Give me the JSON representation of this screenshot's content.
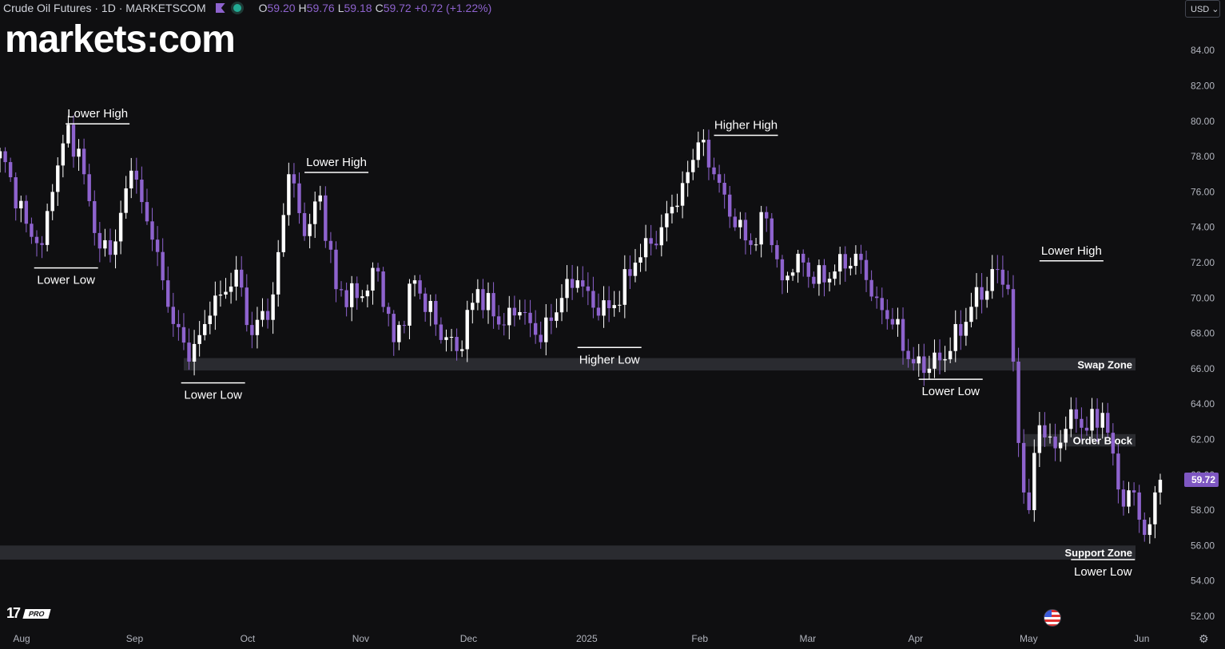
{
  "header": {
    "symbol": "Crude Oil Futures · 1D · MARKETSCOM",
    "o_label": "O",
    "o_value": "59.20",
    "h_label": "H",
    "h_value": "59.76",
    "l_label": "L",
    "l_value": "59.18",
    "c_label": "C",
    "c_value": "59.72",
    "change": "+0.72 (+1.22%)"
  },
  "logo": {
    "left": "markets",
    "colon": ":",
    "right": "com"
  },
  "currency": "USD",
  "watermark": {
    "mark": "17",
    "badge": "PRO"
  },
  "colors": {
    "background": "#0f0f11",
    "bull": "#ffffff",
    "bear": "#8e63ce",
    "zone": "#2a2b30",
    "text": "#d1d4dc",
    "price_tag": "#7e57c2"
  },
  "chart_data": {
    "type": "candlestick",
    "ylim": [
      51.5,
      85.5
    ],
    "y_ticks": [
      52,
      54,
      56,
      58,
      60,
      62,
      64,
      66,
      68,
      70,
      72,
      74,
      76,
      78,
      80,
      82,
      84
    ],
    "x_ticks": [
      "Aug",
      "Sep",
      "Oct",
      "Nov",
      "Dec",
      "2025",
      "Feb",
      "Mar",
      "Apr",
      "May",
      "Jun"
    ],
    "last_price": "59.72",
    "anchors": [
      {
        "d": 0,
        "p": 78.3
      },
      {
        "d": 5,
        "p": 74.2
      },
      {
        "d": 8,
        "p": 73.0
      },
      {
        "d": 10,
        "p": 76.0
      },
      {
        "d": 13,
        "p": 79.8
      },
      {
        "d": 16,
        "p": 77.0
      },
      {
        "d": 19,
        "p": 72.8
      },
      {
        "d": 22,
        "p": 73.2
      },
      {
        "d": 25,
        "p": 77.2
      },
      {
        "d": 29,
        "p": 73.3
      },
      {
        "d": 32,
        "p": 69.5
      },
      {
        "d": 36,
        "p": 66.4
      },
      {
        "d": 40,
        "p": 69.0
      },
      {
        "d": 45,
        "p": 71.6
      },
      {
        "d": 48,
        "p": 67.9
      },
      {
        "d": 52,
        "p": 70.2
      },
      {
        "d": 55,
        "p": 77.0
      },
      {
        "d": 58,
        "p": 73.5
      },
      {
        "d": 61,
        "p": 75.8
      },
      {
        "d": 64,
        "p": 70.5
      },
      {
        "d": 68,
        "p": 70.0
      },
      {
        "d": 72,
        "p": 71.5
      },
      {
        "d": 75,
        "p": 67.5
      },
      {
        "d": 79,
        "p": 71.0
      },
      {
        "d": 83,
        "p": 68.5
      },
      {
        "d": 87,
        "p": 67.0
      },
      {
        "d": 91,
        "p": 70.5
      },
      {
        "d": 95,
        "p": 68.5
      },
      {
        "d": 99,
        "p": 69.2
      },
      {
        "d": 103,
        "p": 67.5
      },
      {
        "d": 107,
        "p": 70.0
      },
      {
        "d": 110,
        "p": 71.0
      },
      {
        "d": 114,
        "p": 69.0
      },
      {
        "d": 117,
        "p": 69.6
      },
      {
        "d": 121,
        "p": 72.0
      },
      {
        "d": 126,
        "p": 74.0
      },
      {
        "d": 130,
        "p": 76.5
      },
      {
        "d": 133,
        "p": 78.8
      },
      {
        "d": 136,
        "p": 77.0
      },
      {
        "d": 140,
        "p": 74.0
      },
      {
        "d": 143,
        "p": 73.0
      },
      {
        "d": 146,
        "p": 74.5
      },
      {
        "d": 149,
        "p": 71.0
      },
      {
        "d": 152,
        "p": 72.5
      },
      {
        "d": 155,
        "p": 70.8
      },
      {
        "d": 159,
        "p": 71.5
      },
      {
        "d": 163,
        "p": 72.5
      },
      {
        "d": 167,
        "p": 70.0
      },
      {
        "d": 170,
        "p": 68.5
      },
      {
        "d": 174,
        "p": 66.3
      },
      {
        "d": 177,
        "p": 66.0
      },
      {
        "d": 181,
        "p": 67.0
      },
      {
        "d": 185,
        "p": 69.5
      },
      {
        "d": 190,
        "p": 71.6
      },
      {
        "d": 192,
        "p": 70.5
      },
      {
        "d": 193,
        "p": 66.4
      },
      {
        "d": 194,
        "p": 61.8
      },
      {
        "d": 195,
        "p": 59.0
      },
      {
        "d": 196,
        "p": 58.0
      },
      {
        "d": 198,
        "p": 62.8
      },
      {
        "d": 201,
        "p": 61.5
      },
      {
        "d": 204,
        "p": 63.7
      },
      {
        "d": 207,
        "p": 62.5
      },
      {
        "d": 210,
        "p": 63.5
      },
      {
        "d": 212,
        "p": 61.2
      },
      {
        "d": 214,
        "p": 58.2
      },
      {
        "d": 216,
        "p": 59.0
      },
      {
        "d": 218,
        "p": 56.6
      },
      {
        "d": 219,
        "p": 57.2
      },
      {
        "d": 220,
        "p": 59.0
      },
      {
        "d": 221,
        "p": 59.72
      }
    ],
    "zones": [
      {
        "label": "Swap Zone",
        "top": 66.6,
        "bottom": 65.9,
        "from_day": 35,
        "to_day": 239
      },
      {
        "label": "Order Block",
        "top": 62.3,
        "bottom": 61.6,
        "from_day": 195,
        "to_day": 239
      },
      {
        "label": "Support Zone",
        "top": 56.0,
        "bottom": 55.2,
        "from_day": -6,
        "to_day": 239
      }
    ],
    "swings": [
      {
        "label": "Lower High",
        "price": 79.85,
        "day": 12.5,
        "pos": "above"
      },
      {
        "label": "Lower Low",
        "price": 71.7,
        "day": 6.5,
        "pos": "below"
      },
      {
        "label": "Lower High",
        "price": 77.1,
        "day": 58,
        "pos": "above"
      },
      {
        "label": "Lower Low",
        "price": 65.2,
        "day": 34.5,
        "pos": "below"
      },
      {
        "label": "Higher High",
        "price": 79.2,
        "day": 136,
        "pos": "above"
      },
      {
        "label": "Higher Low",
        "price": 67.2,
        "day": 110,
        "pos": "below"
      },
      {
        "label": "Lower High",
        "price": 72.1,
        "day": 198,
        "pos": "above"
      },
      {
        "label": "Lower Low",
        "price": 65.4,
        "day": 175,
        "pos": "below"
      },
      {
        "label": "Lower Low",
        "price": 55.2,
        "day": 204,
        "pos": "below"
      }
    ]
  }
}
